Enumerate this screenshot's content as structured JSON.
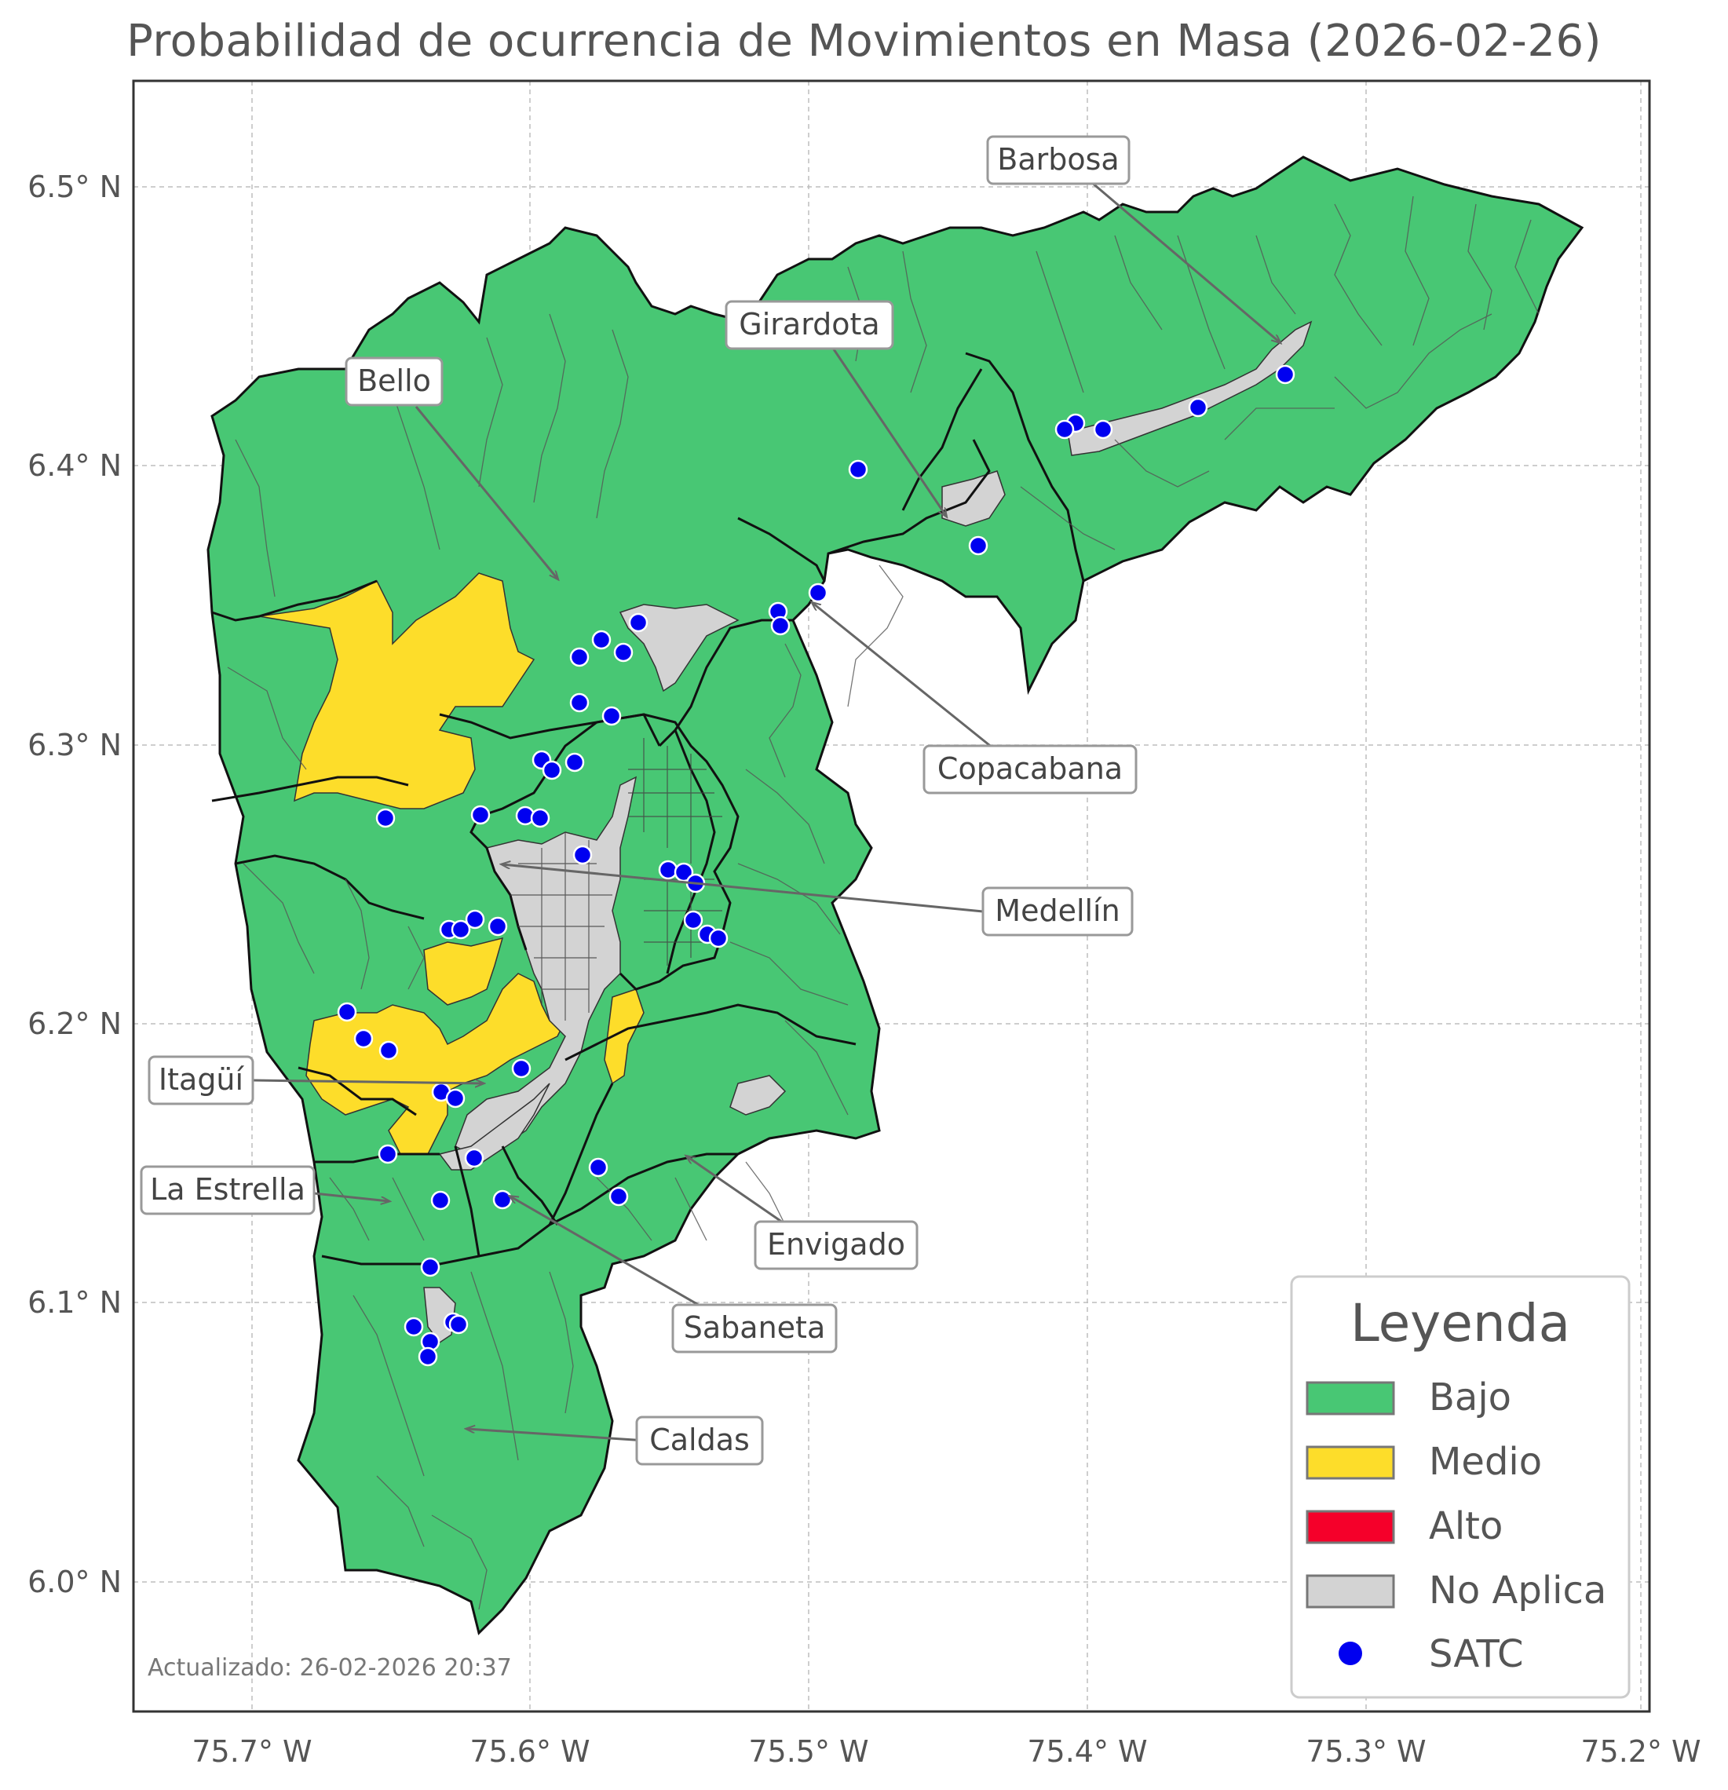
{
  "title": "Probabilidad de ocurrencia de Movimientos en Masa (2026-02-26)",
  "axes": {
    "x_ticks": [
      "75.7° W",
      "75.6° W",
      "75.5° W",
      "75.4° W",
      "75.3° W",
      "75.2° W"
    ],
    "y_ticks": [
      "6.5° N",
      "6.4° N",
      "6.3° N",
      "6.2° N",
      "6.1° N",
      "6.0° N"
    ]
  },
  "municipalities": [
    {
      "name": "Barbosa"
    },
    {
      "name": "Girardota"
    },
    {
      "name": "Bello"
    },
    {
      "name": "Copacabana"
    },
    {
      "name": "Medellín"
    },
    {
      "name": "Itagüí"
    },
    {
      "name": "La Estrella"
    },
    {
      "name": "Envigado"
    },
    {
      "name": "Sabaneta"
    },
    {
      "name": "Caldas"
    }
  ],
  "legend": {
    "title": "Leyenda",
    "items": [
      {
        "label": "Bajo",
        "color": "#48c774"
      },
      {
        "label": "Medio",
        "color": "#fddd2a"
      },
      {
        "label": "Alto",
        "color": "#f5002a"
      },
      {
        "label": "No Aplica",
        "color": "#d3d3d3"
      },
      {
        "label": "SATC",
        "color": "#0000f0"
      }
    ]
  },
  "footer": "Actualizado: 26-02-2026 20:37"
}
